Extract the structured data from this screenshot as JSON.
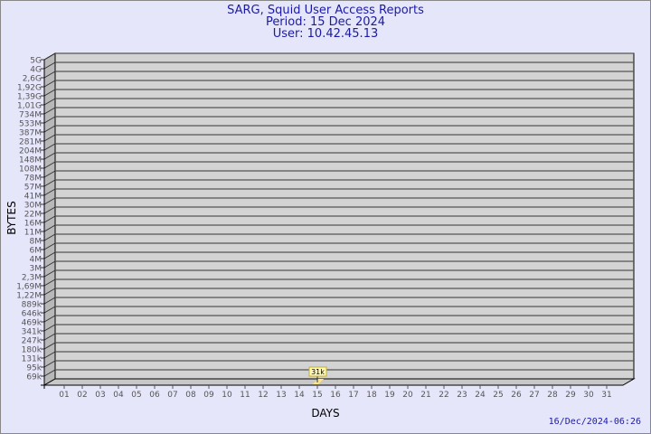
{
  "header": {
    "title": "SARG, Squid User Access Reports",
    "period": "Period: 15 Dec 2024",
    "user": "User: 10.42.45.13"
  },
  "timestamp": "16/Dec/2024-06:26",
  "colors": {
    "background": "#e6e6fa",
    "plot_wall": "#d3d3d3",
    "bar": "#ffe680",
    "label_bg": "#fff8c0",
    "title": "#1a1aa6"
  },
  "chart_data": {
    "type": "bar",
    "xlabel": "DAYS",
    "ylabel": "BYTES",
    "yscale": "log",
    "grid": true,
    "y_ticks": [
      "5G",
      "4G",
      "2,6G",
      "1,92G",
      "1,39G",
      "1,01G",
      "734M",
      "533M",
      "387M",
      "281M",
      "204M",
      "148M",
      "108M",
      "78M",
      "57M",
      "41M",
      "30M",
      "22M",
      "16M",
      "11M",
      "8M",
      "6M",
      "4M",
      "3M",
      "2,3M",
      "1,69M",
      "1,22M",
      "889k",
      "646k",
      "469k",
      "341k",
      "247k",
      "180k",
      "131k",
      "95k",
      "69k"
    ],
    "categories": [
      "01",
      "02",
      "03",
      "04",
      "05",
      "06",
      "07",
      "08",
      "09",
      "10",
      "11",
      "12",
      "13",
      "14",
      "15",
      "16",
      "17",
      "18",
      "19",
      "20",
      "21",
      "22",
      "23",
      "24",
      "25",
      "26",
      "27",
      "28",
      "29",
      "30",
      "31"
    ],
    "bars": [
      {
        "day": "15",
        "value": 31000,
        "label": "31k"
      }
    ]
  }
}
